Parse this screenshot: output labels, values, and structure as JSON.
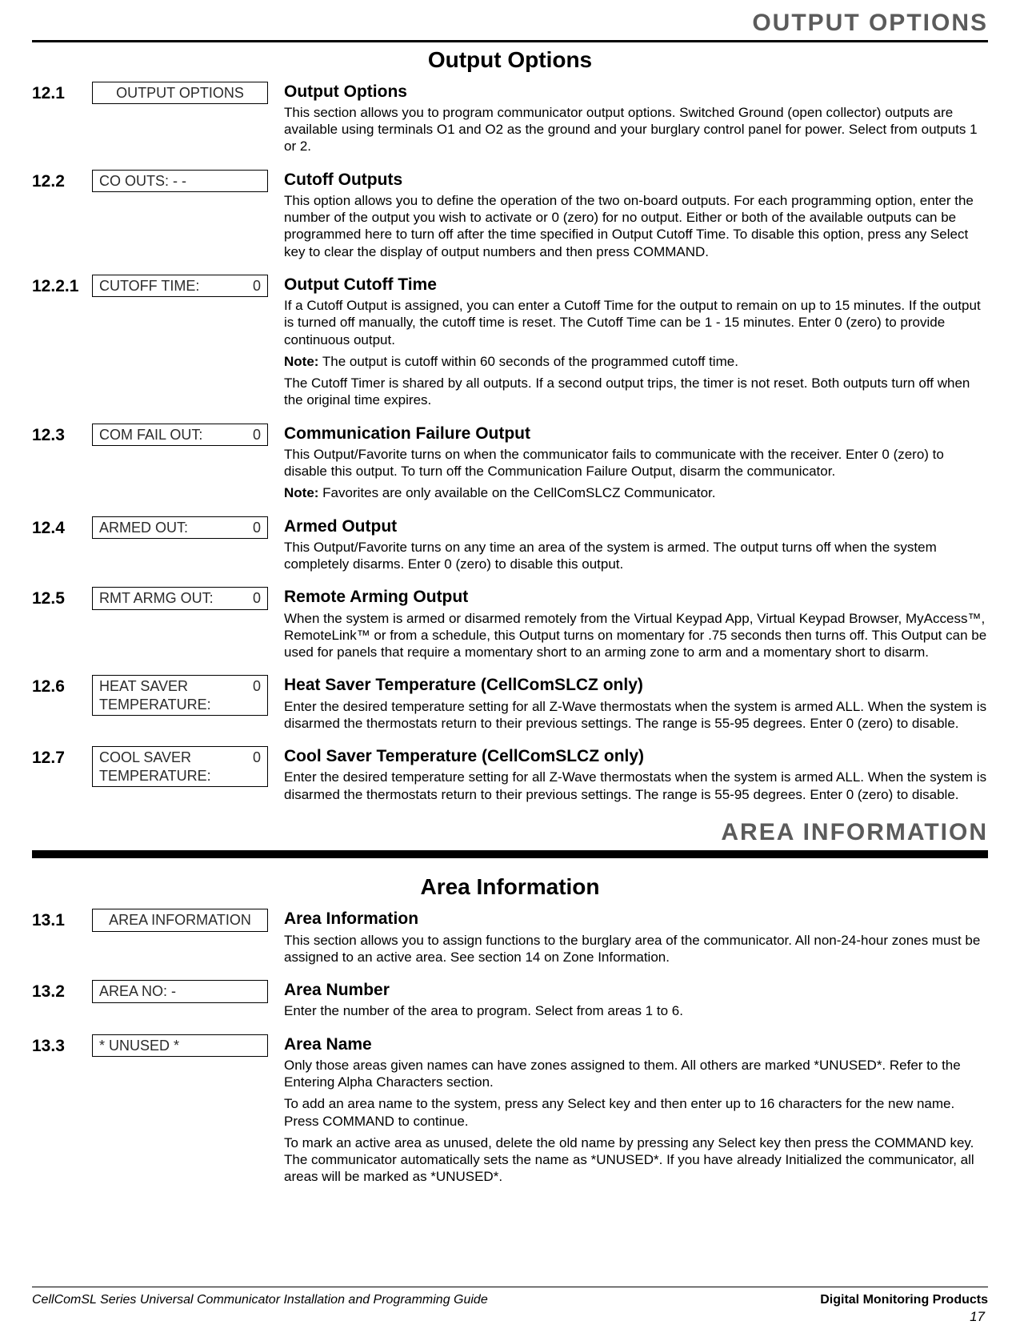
{
  "header": {
    "band1": "OUTPUT OPTIONS",
    "title1": "Output Options"
  },
  "rows1": [
    {
      "num": "12.1",
      "lcd_left": "OUTPUT OPTIONS",
      "lcd_right": "",
      "lcd_centered": true,
      "title": "Output Options",
      "paras": [
        "This section allows you to program communicator output options. Switched Ground (open collector) outputs are available using terminals O1 and O2 as the ground and your burglary control panel for power. Select from outputs 1 or 2."
      ]
    },
    {
      "num": "12.2",
      "lcd_left": "CO OUTS: - -",
      "lcd_right": "",
      "title": "Cutoff Outputs",
      "paras": [
        "This option allows you to define the operation of the two on-board outputs. For each programming option, enter the number of the output you wish to activate or 0 (zero) for no output. Either or both of the available outputs can be programmed here to turn off after the time specified in Output Cutoff Time. To disable this option, press any Select key to clear the display of output numbers and then press COMMAND."
      ]
    },
    {
      "num": "12.2.1",
      "lcd_left": "CUTOFF TIME:",
      "lcd_right": "0",
      "title": "Output Cutoff Time",
      "paras": [
        "If a Cutoff Output is assigned, you can enter a Cutoff Time for the output to remain on up to 15 minutes. If the output is turned off manually, the cutoff time is reset. The Cutoff Time can be 1 - 15 minutes. Enter 0 (zero) to provide continuous output.",
        "<span class=\"note-label\">Note:</span> The output is cutoff within 60 seconds of the programmed cutoff time.",
        "The Cutoff Timer is shared by all outputs. If a second output trips, the timer is not reset. Both outputs turn off when the original time expires."
      ]
    },
    {
      "num": "12.3",
      "lcd_left": "COM FAIL OUT:",
      "lcd_right": "0",
      "title": "Communication Failure Output",
      "paras": [
        "This Output/Favorite turns on when the communicator fails to communicate with the receiver. Enter 0 (zero) to disable this output. To turn off the Communication Failure Output, disarm the communicator.",
        "<span class=\"note-label\">Note:</span> Favorites are only available on the CellComSLCZ Communicator."
      ]
    },
    {
      "num": "12.4",
      "lcd_left": "ARMED OUT:",
      "lcd_right": "0",
      "title": "Armed Output",
      "paras": [
        "This Output/Favorite turns on any time an area of the system is armed. The output turns off when the system completely disarms. Enter 0 (zero) to disable this output."
      ]
    },
    {
      "num": "12.5",
      "lcd_left": "RMT ARMG OUT:",
      "lcd_right": "0",
      "title": "Remote Arming Output",
      "paras": [
        "When the system is armed or disarmed remotely from the Virtual Keypad App, Virtual Keypad Browser, MyAccess™, RemoteLink™ or from a schedule, this Output turns on momentary for .75 seconds then turns off. This Output can be used for panels that require a momentary short to an arming zone to arm and a momentary short to disarm."
      ]
    },
    {
      "num": "12.6",
      "lcd_left": "HEAT SAVER\nTEMPERATURE:",
      "lcd_right": "0",
      "lcd_tall": true,
      "title": "Heat Saver Temperature (CellComSLCZ only)",
      "paras": [
        "Enter the desired temperature setting for all Z-Wave thermostats when the system is armed ALL. When the system is disarmed the thermostats return to their previous settings. The range is 55-95 degrees. Enter 0 (zero) to disable."
      ]
    },
    {
      "num": "12.7",
      "lcd_left": "COOL SAVER\nTEMPERATURE:",
      "lcd_right": "0",
      "lcd_tall": true,
      "title": "Cool Saver Temperature (CellComSLCZ only)",
      "paras": [
        "Enter the desired temperature setting for all Z-Wave thermostats when the system is armed ALL. When the system is disarmed the thermostats return to their previous settings. The range is 55-95 degrees. Enter 0 (zero) to disable."
      ]
    }
  ],
  "header2": {
    "band": "AREA INFORMATION",
    "title": "Area Information"
  },
  "rows2": [
    {
      "num": "13.1",
      "lcd_left": "AREA INFORMATION",
      "lcd_right": "",
      "lcd_centered": true,
      "title": "Area Information",
      "paras": [
        "This section allows you to assign functions to the burglary area of the communicator. All non-24-hour zones must be assigned to an active area. See section 14 on Zone Information."
      ]
    },
    {
      "num": "13.2",
      "lcd_left": "AREA NO: -",
      "lcd_right": "",
      "title": "Area Number",
      "paras": [
        "Enter the number of the area to program. Select from areas 1 to 6."
      ]
    },
    {
      "num": "13.3",
      "lcd_left": "* UNUSED *",
      "lcd_right": "",
      "title": "Area Name",
      "paras": [
        "Only those areas given names can have zones assigned to them. All others are marked *UNUSED*. Refer to the Entering Alpha Characters section.",
        "To add an area name to the system, press any Select key and then enter up to 16 characters for the new name. Press COMMAND to continue.",
        "To mark an active area as unused, delete the old name by pressing any Select key then press the COMMAND key. The communicator automatically sets the name as *UNUSED*. If you have already Initialized the communicator, all areas will be marked as *UNUSED*."
      ]
    }
  ],
  "footer": {
    "left": "CellComSL Series Universal Communicator Installation and Programming Guide",
    "right": "Digital Monitoring Products",
    "page": "17"
  }
}
